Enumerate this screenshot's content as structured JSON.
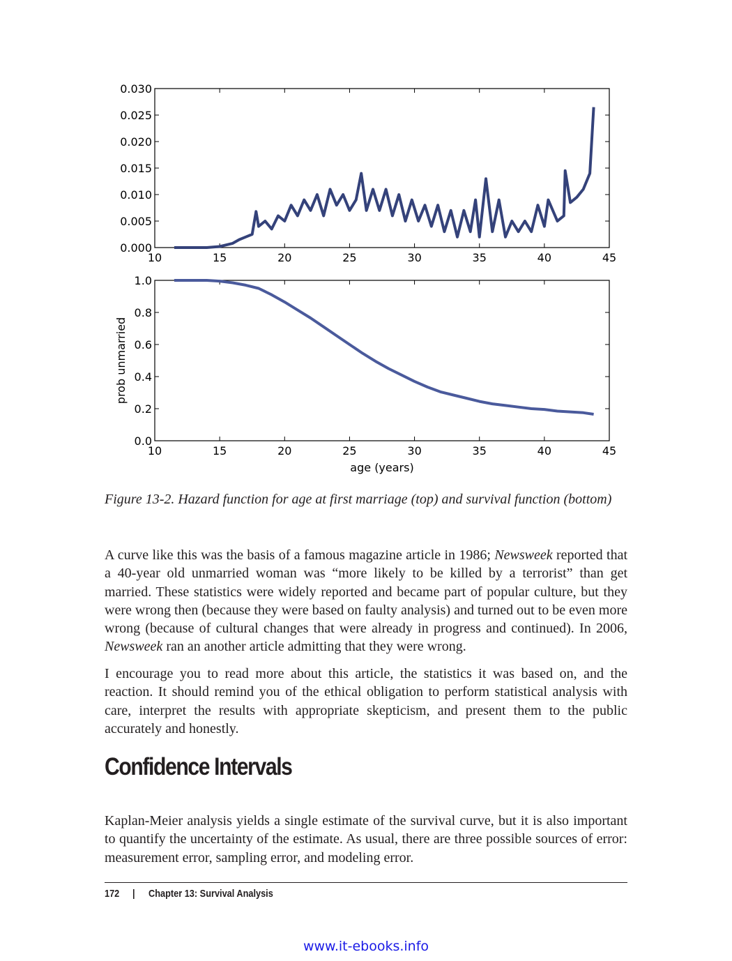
{
  "chart_data": [
    {
      "type": "line",
      "color": "#34427a",
      "x": [
        11.5,
        13,
        14,
        15,
        15.5,
        16,
        16.5,
        17,
        17.5,
        17.8,
        18,
        18.5,
        19,
        19.5,
        20,
        20.5,
        21,
        21.5,
        22,
        22.5,
        23,
        23.5,
        24,
        24.5,
        25,
        25.5,
        25.9,
        26.3,
        26.8,
        27.3,
        27.8,
        28.3,
        28.8,
        29.3,
        29.8,
        30.3,
        30.8,
        31.3,
        31.8,
        32.3,
        32.8,
        33.3,
        33.8,
        34.3,
        34.7,
        35,
        35.5,
        36,
        36.5,
        37,
        37.5,
        38,
        38.5,
        39,
        39.5,
        40,
        40.3,
        41,
        41.5,
        41.6,
        42,
        42.5,
        43,
        43.5,
        43.8
      ],
      "values": [
        0,
        0,
        0,
        0.0002,
        0.0005,
        0.0008,
        0.0015,
        0.002,
        0.0025,
        0.0068,
        0.004,
        0.005,
        0.0035,
        0.006,
        0.005,
        0.008,
        0.006,
        0.009,
        0.007,
        0.01,
        0.006,
        0.011,
        0.008,
        0.01,
        0.007,
        0.009,
        0.014,
        0.007,
        0.011,
        0.007,
        0.011,
        0.006,
        0.01,
        0.005,
        0.009,
        0.005,
        0.008,
        0.004,
        0.008,
        0.003,
        0.007,
        0.002,
        0.007,
        0.003,
        0.009,
        0.002,
        0.013,
        0.003,
        0.009,
        0.002,
        0.005,
        0.003,
        0.005,
        0.003,
        0.008,
        0.004,
        0.009,
        0.005,
        0.006,
        0.0145,
        0.0085,
        0.0095,
        0.011,
        0.014,
        0.0265
      ],
      "xlim": [
        10,
        45
      ],
      "xticks": [
        10,
        15,
        20,
        25,
        30,
        35,
        40,
        45
      ],
      "ylim": [
        0,
        0.03
      ],
      "yticks": [
        {
          "value": 0,
          "label": "0.000"
        },
        0.005,
        {
          "value": 0.01,
          "label": "0.010"
        },
        0.015,
        {
          "value": 0.02,
          "label": "0.020"
        },
        0.025,
        {
          "value": 0.03,
          "label": "0.030"
        }
      ]
    },
    {
      "type": "line",
      "color": "#4a5a9c",
      "y_label": "prob unmarried",
      "x_label": "age (years)",
      "x": [
        11.5,
        14,
        15,
        16,
        17,
        18,
        19,
        20,
        21,
        22,
        23,
        24,
        25,
        26,
        27,
        28,
        29,
        30,
        31,
        32,
        33,
        34,
        35,
        36,
        37,
        38,
        39,
        40,
        41,
        42,
        43,
        43.8
      ],
      "values": [
        1.0,
        1.0,
        0.995,
        0.985,
        0.97,
        0.95,
        0.91,
        0.865,
        0.815,
        0.765,
        0.71,
        0.655,
        0.6,
        0.545,
        0.495,
        0.45,
        0.41,
        0.37,
        0.335,
        0.305,
        0.285,
        0.265,
        0.245,
        0.23,
        0.22,
        0.21,
        0.2,
        0.195,
        0.185,
        0.18,
        0.175,
        0.165
      ],
      "xlim": [
        10,
        45
      ],
      "xticks": [
        10,
        15,
        20,
        25,
        30,
        35,
        40,
        45
      ],
      "ylim": [
        0,
        1
      ],
      "yticks": [
        {
          "value": 0,
          "label": "0.0"
        },
        0.2,
        0.4,
        0.6,
        0.8,
        {
          "value": 1,
          "label": "1.0"
        }
      ]
    }
  ],
  "caption": "Figure 13-2. Hazard function for age at first marriage (top) and survival function (bottom)",
  "paragraphs": [
    [
      "A curve like this was the basis of a famous magazine article in 1986; ",
      "Newsweek",
      " reported that a 40-year old unmarried woman was “more likely to be killed by a terrorist” than get married. These statistics were widely reported and became part of popular culture, but they were wrong then (because they were based on faulty analysis) and turned out to be even more wrong (because of cultural changes that were already in progress and continued). In 2006, ",
      "Newsweek",
      " ran an another article admitting that they were wrong."
    ],
    [
      "I encourage you to read more about this article, the statistics it was based on, and the reaction. It should remind you of the ethical obligation to perform statistical analysis with care, interpret the results with appropriate skepticism, and present them to the public accurately and honestly."
    ]
  ],
  "heading": "Confidence Intervals",
  "paragraph_after": "Kaplan-Meier analysis yields a single estimate of the survival curve, but it is also important to quantify the uncertainty of the estimate. As usual, there are three possible sources of error: measurement error, sampling error, and modeling error.",
  "footer": {
    "page": "172",
    "separator": "|",
    "chapter": "Chapter 13: Survival Analysis"
  },
  "watermark": "www.it-ebooks.info"
}
